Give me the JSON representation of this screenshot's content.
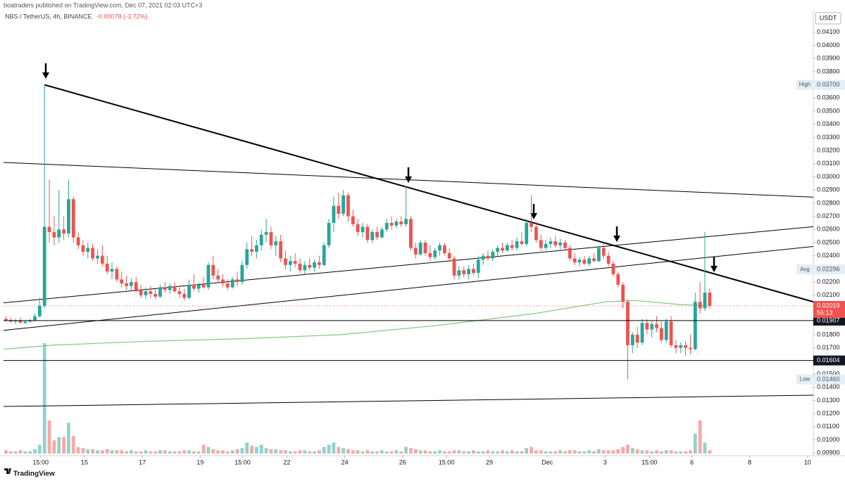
{
  "footer": "TradingView",
  "chart_data": {
    "type": "candlestick",
    "publisher": "boatraders published on TradingView.com, Dec 07, 2021 02:03 UTC+3",
    "title": "NBS / TetherUS, 4h, BINANCE",
    "change": "-0.00078 (-3.72%)",
    "currency": "USDT",
    "up_color": "#26a69a",
    "down_color": "#ef5350",
    "xlim": [
      0,
      168
    ],
    "ylim": [
      0.0088,
      0.0427
    ],
    "xticks": [
      {
        "value": 7.7,
        "label": "15:00"
      },
      {
        "value": 16.8,
        "label": "15"
      },
      {
        "value": 28.8,
        "label": "17"
      },
      {
        "value": 40.8,
        "label": "19"
      },
      {
        "value": 49.6,
        "label": "15:00"
      },
      {
        "value": 58.8,
        "label": "22"
      },
      {
        "value": 70.8,
        "label": "24"
      },
      {
        "value": 82.8,
        "label": "26"
      },
      {
        "value": 91.9,
        "label": "15:00"
      },
      {
        "value": 100.8,
        "label": "29"
      },
      {
        "value": 112.8,
        "label": "Dec"
      },
      {
        "value": 124.8,
        "label": "3"
      },
      {
        "value": 134,
        "label": "15:00"
      },
      {
        "value": 142.8,
        "label": "6"
      },
      {
        "value": 154.8,
        "label": "8"
      },
      {
        "value": 166.8,
        "label": "10"
      }
    ],
    "yticks": [
      {
        "value": 0.009,
        "label": "0.00900"
      },
      {
        "value": 0.01,
        "label": "0.01000"
      },
      {
        "value": 0.011,
        "label": "0.01100"
      },
      {
        "value": 0.012,
        "label": "0.01200"
      },
      {
        "value": 0.013,
        "label": "0.01300"
      },
      {
        "value": 0.014,
        "label": "0.01400"
      },
      {
        "value": 0.015,
        "label": "0.01500"
      },
      {
        "value": 0.016,
        "label": "0.01600"
      },
      {
        "value": 0.017,
        "label": "0.01700"
      },
      {
        "value": 0.018,
        "label": "0.01800"
      },
      {
        "value": 0.019,
        "label": "0.01900"
      },
      {
        "value": 0.02,
        "label": "0.02000"
      },
      {
        "value": 0.021,
        "label": "0.02100"
      },
      {
        "value": 0.022,
        "label": "0.02200"
      },
      {
        "value": 0.023,
        "label": "0.02300"
      },
      {
        "value": 0.024,
        "label": "0.02400"
      },
      {
        "value": 0.025,
        "label": "0.02500"
      },
      {
        "value": 0.026,
        "label": "0.02600"
      },
      {
        "value": 0.027,
        "label": "0.02700"
      },
      {
        "value": 0.028,
        "label": "0.02800"
      },
      {
        "value": 0.029,
        "label": "0.02900"
      },
      {
        "value": 0.03,
        "label": "0.03000"
      },
      {
        "value": 0.031,
        "label": "0.03100"
      },
      {
        "value": 0.032,
        "label": "0.03200"
      },
      {
        "value": 0.033,
        "label": "0.03300"
      },
      {
        "value": 0.034,
        "label": "0.03400"
      },
      {
        "value": 0.035,
        "label": "0.03500"
      },
      {
        "value": 0.036,
        "label": "0.03600"
      },
      {
        "value": 0.037,
        "label": "0.03700"
      },
      {
        "value": 0.038,
        "label": "0.03800"
      },
      {
        "value": 0.039,
        "label": "0.03900"
      },
      {
        "value": 0.04,
        "label": "0.04000"
      },
      {
        "value": 0.041,
        "label": "0.04100"
      }
    ],
    "ohlc": [
      [
        0.0192,
        0.0194,
        0.019,
        0.0191
      ],
      [
        0.0191,
        0.0193,
        0.0189,
        0.019
      ],
      [
        0.019,
        0.0192,
        0.0188,
        0.0191
      ],
      [
        0.0191,
        0.0193,
        0.0189,
        0.0189
      ],
      [
        0.0189,
        0.0191,
        0.0188,
        0.019
      ],
      [
        0.019,
        0.0192,
        0.0189,
        0.0191
      ],
      [
        0.0191,
        0.0196,
        0.019,
        0.0194
      ],
      [
        0.0194,
        0.0208,
        0.0193,
        0.0202
      ],
      [
        0.0202,
        0.037,
        0.02,
        0.0262
      ],
      [
        0.0262,
        0.0298,
        0.025,
        0.0258
      ],
      [
        0.0258,
        0.027,
        0.0248,
        0.0254
      ],
      [
        0.0254,
        0.029,
        0.025,
        0.026
      ],
      [
        0.026,
        0.027,
        0.0252,
        0.0257
      ],
      [
        0.0257,
        0.0298,
        0.0254,
        0.0283
      ],
      [
        0.0283,
        0.0285,
        0.025,
        0.0254
      ],
      [
        0.0254,
        0.0258,
        0.0245,
        0.0248
      ],
      [
        0.0248,
        0.0252,
        0.024,
        0.0243
      ],
      [
        0.0243,
        0.025,
        0.0238,
        0.0246
      ],
      [
        0.0246,
        0.0249,
        0.0236,
        0.0238
      ],
      [
        0.0238,
        0.0245,
        0.0234,
        0.024
      ],
      [
        0.024,
        0.0248,
        0.0232,
        0.0234
      ],
      [
        0.0234,
        0.024,
        0.0226,
        0.0228
      ],
      [
        0.0228,
        0.0235,
        0.0222,
        0.023
      ],
      [
        0.023,
        0.0232,
        0.022,
        0.0222
      ],
      [
        0.0222,
        0.0228,
        0.0216,
        0.0219
      ],
      [
        0.0219,
        0.0225,
        0.0214,
        0.0217
      ],
      [
        0.0217,
        0.0223,
        0.0213,
        0.022
      ],
      [
        0.022,
        0.0224,
        0.0212,
        0.0214
      ],
      [
        0.0214,
        0.0218,
        0.0208,
        0.021
      ],
      [
        0.021,
        0.0216,
        0.0207,
        0.0213
      ],
      [
        0.0213,
        0.0217,
        0.0208,
        0.0211
      ],
      [
        0.0211,
        0.0215,
        0.0207,
        0.0209
      ],
      [
        0.0209,
        0.0218,
        0.0208,
        0.0216
      ],
      [
        0.0216,
        0.022,
        0.0212,
        0.0214
      ],
      [
        0.0214,
        0.0219,
        0.0211,
        0.0217
      ],
      [
        0.0217,
        0.022,
        0.0212,
        0.0213
      ],
      [
        0.0213,
        0.0216,
        0.0208,
        0.0211
      ],
      [
        0.0211,
        0.0215,
        0.0206,
        0.0208
      ],
      [
        0.0208,
        0.0222,
        0.0207,
        0.0218
      ],
      [
        0.0218,
        0.0226,
        0.0213,
        0.0215
      ],
      [
        0.0215,
        0.022,
        0.0212,
        0.0218
      ],
      [
        0.0218,
        0.0224,
        0.0215,
        0.0216
      ],
      [
        0.0216,
        0.0235,
        0.0214,
        0.0233
      ],
      [
        0.0233,
        0.024,
        0.0222,
        0.0225
      ],
      [
        0.0225,
        0.023,
        0.0219,
        0.0222
      ],
      [
        0.0222,
        0.0226,
        0.0216,
        0.0219
      ],
      [
        0.0219,
        0.0222,
        0.0214,
        0.0216
      ],
      [
        0.0216,
        0.0224,
        0.0215,
        0.0222
      ],
      [
        0.0222,
        0.0228,
        0.0217,
        0.022
      ],
      [
        0.022,
        0.0236,
        0.0218,
        0.0233
      ],
      [
        0.0233,
        0.025,
        0.023,
        0.0245
      ],
      [
        0.0245,
        0.0255,
        0.024,
        0.0243
      ],
      [
        0.0243,
        0.0252,
        0.0238,
        0.0248
      ],
      [
        0.0248,
        0.026,
        0.0244,
        0.0256
      ],
      [
        0.0256,
        0.0268,
        0.025,
        0.0258
      ],
      [
        0.0258,
        0.0262,
        0.0245,
        0.0248
      ],
      [
        0.0248,
        0.0255,
        0.024,
        0.0251
      ],
      [
        0.0251,
        0.0256,
        0.0235,
        0.0238
      ],
      [
        0.0238,
        0.0244,
        0.023,
        0.0233
      ],
      [
        0.0233,
        0.024,
        0.0228,
        0.0236
      ],
      [
        0.0236,
        0.0242,
        0.0231,
        0.0234
      ],
      [
        0.0234,
        0.0238,
        0.0227,
        0.0229
      ],
      [
        0.0229,
        0.0236,
        0.0226,
        0.0233
      ],
      [
        0.0233,
        0.0238,
        0.0229,
        0.0231
      ],
      [
        0.0231,
        0.0237,
        0.0228,
        0.0235
      ],
      [
        0.0235,
        0.024,
        0.023,
        0.0233
      ],
      [
        0.0233,
        0.025,
        0.0232,
        0.0248
      ],
      [
        0.0248,
        0.0268,
        0.0246,
        0.0265
      ],
      [
        0.0265,
        0.0285,
        0.0258,
        0.0278
      ],
      [
        0.0278,
        0.0288,
        0.0268,
        0.0272
      ],
      [
        0.0272,
        0.029,
        0.027,
        0.0286
      ],
      [
        0.0286,
        0.0288,
        0.0266,
        0.027
      ],
      [
        0.027,
        0.0275,
        0.0262,
        0.0264
      ],
      [
        0.0264,
        0.0268,
        0.0255,
        0.0258
      ],
      [
        0.0258,
        0.0265,
        0.0254,
        0.0262
      ],
      [
        0.0262,
        0.0264,
        0.025,
        0.0252
      ],
      [
        0.0252,
        0.026,
        0.025,
        0.0258
      ],
      [
        0.0258,
        0.0262,
        0.0252,
        0.0254
      ],
      [
        0.0254,
        0.0262,
        0.0253,
        0.026
      ],
      [
        0.026,
        0.0268,
        0.0258,
        0.0265
      ],
      [
        0.0265,
        0.027,
        0.026,
        0.0263
      ],
      [
        0.0263,
        0.0268,
        0.0261,
        0.0266
      ],
      [
        0.0266,
        0.027,
        0.0262,
        0.0264
      ],
      [
        0.0264,
        0.0293,
        0.0262,
        0.0268
      ],
      [
        0.0268,
        0.027,
        0.0244,
        0.0246
      ],
      [
        0.0246,
        0.025,
        0.0238,
        0.0241
      ],
      [
        0.0241,
        0.0252,
        0.024,
        0.025
      ],
      [
        0.025,
        0.0252,
        0.024,
        0.0242
      ],
      [
        0.0242,
        0.0248,
        0.0236,
        0.0239
      ],
      [
        0.0239,
        0.0246,
        0.0237,
        0.0244
      ],
      [
        0.0244,
        0.025,
        0.024,
        0.0248
      ],
      [
        0.0248,
        0.025,
        0.024,
        0.0242
      ],
      [
        0.0242,
        0.0246,
        0.0236,
        0.0238
      ],
      [
        0.0238,
        0.024,
        0.0222,
        0.0225
      ],
      [
        0.0225,
        0.0232,
        0.0222,
        0.0229
      ],
      [
        0.0229,
        0.0232,
        0.0224,
        0.0226
      ],
      [
        0.0226,
        0.0233,
        0.0222,
        0.023
      ],
      [
        0.023,
        0.0234,
        0.0225,
        0.0227
      ],
      [
        0.0227,
        0.024,
        0.0223,
        0.0237
      ],
      [
        0.0237,
        0.0242,
        0.0233,
        0.024
      ],
      [
        0.024,
        0.0244,
        0.0236,
        0.0238
      ],
      [
        0.0238,
        0.0245,
        0.0236,
        0.0243
      ],
      [
        0.0243,
        0.0248,
        0.024,
        0.0246
      ],
      [
        0.0246,
        0.025,
        0.0242,
        0.0244
      ],
      [
        0.0244,
        0.025,
        0.0243,
        0.0248
      ],
      [
        0.0248,
        0.0252,
        0.0244,
        0.0246
      ],
      [
        0.0246,
        0.0254,
        0.0244,
        0.0251
      ],
      [
        0.0251,
        0.0258,
        0.0248,
        0.0249
      ],
      [
        0.0249,
        0.0268,
        0.0247,
        0.0265
      ],
      [
        0.0265,
        0.0286,
        0.0258,
        0.0262
      ],
      [
        0.0262,
        0.0266,
        0.025,
        0.0252
      ],
      [
        0.0252,
        0.0256,
        0.0244,
        0.0246
      ],
      [
        0.0246,
        0.0252,
        0.0244,
        0.0249
      ],
      [
        0.0249,
        0.0254,
        0.0246,
        0.0251
      ],
      [
        0.0251,
        0.0255,
        0.0246,
        0.0248
      ],
      [
        0.0248,
        0.0253,
        0.0245,
        0.025
      ],
      [
        0.025,
        0.0252,
        0.0244,
        0.0246
      ],
      [
        0.0246,
        0.0248,
        0.0236,
        0.0238
      ],
      [
        0.0238,
        0.0242,
        0.0233,
        0.0235
      ],
      [
        0.0235,
        0.0239,
        0.0232,
        0.0237
      ],
      [
        0.0237,
        0.024,
        0.0233,
        0.0234
      ],
      [
        0.0234,
        0.024,
        0.0232,
        0.0238
      ],
      [
        0.0238,
        0.0242,
        0.0235,
        0.0236
      ],
      [
        0.0236,
        0.0248,
        0.0235,
        0.0246
      ],
      [
        0.0246,
        0.025,
        0.0238,
        0.024
      ],
      [
        0.024,
        0.0243,
        0.0232,
        0.0234
      ],
      [
        0.0234,
        0.0236,
        0.0224,
        0.0226
      ],
      [
        0.0226,
        0.0228,
        0.0216,
        0.0218
      ],
      [
        0.0218,
        0.022,
        0.02,
        0.0205
      ],
      [
        0.0205,
        0.0207,
        0.0146,
        0.0172
      ],
      [
        0.0172,
        0.0182,
        0.0166,
        0.018
      ],
      [
        0.018,
        0.0186,
        0.017,
        0.0174
      ],
      [
        0.0174,
        0.0192,
        0.0172,
        0.0189
      ],
      [
        0.0189,
        0.0192,
        0.018,
        0.0184
      ],
      [
        0.0184,
        0.019,
        0.0178,
        0.0188
      ],
      [
        0.0188,
        0.0194,
        0.0182,
        0.0185
      ],
      [
        0.0185,
        0.019,
        0.0174,
        0.0176
      ],
      [
        0.0176,
        0.0192,
        0.0174,
        0.019
      ],
      [
        0.019,
        0.0194,
        0.017,
        0.0172
      ],
      [
        0.0172,
        0.0176,
        0.0166,
        0.017
      ],
      [
        0.017,
        0.0174,
        0.0166,
        0.0172
      ],
      [
        0.0172,
        0.0175,
        0.0164,
        0.017
      ],
      [
        0.017,
        0.018,
        0.0165,
        0.0169
      ],
      [
        0.0169,
        0.0212,
        0.0168,
        0.0205
      ],
      [
        0.0205,
        0.022,
        0.0196,
        0.02
      ],
      [
        0.02,
        0.0258,
        0.0198,
        0.0212
      ],
      [
        0.0212,
        0.0215,
        0.02,
        0.0202
      ]
    ],
    "volume": [
      3,
      2,
      2,
      3,
      2,
      2,
      4,
      8,
      100,
      30,
      12,
      15,
      15,
      28,
      16,
      6,
      5,
      4,
      4,
      3,
      3,
      4,
      3,
      3,
      3,
      2,
      3,
      2,
      2,
      3,
      2,
      2,
      3,
      3,
      2,
      2,
      2,
      3,
      3,
      2,
      2,
      8,
      6,
      4,
      3,
      3,
      2,
      3,
      4,
      5,
      10,
      7,
      6,
      8,
      5,
      4,
      4,
      3,
      3,
      2,
      2,
      3,
      3,
      2,
      2,
      3,
      6,
      8,
      10,
      6,
      5,
      4,
      3,
      3,
      2,
      3,
      2,
      2,
      3,
      2,
      2,
      3,
      2,
      6,
      5,
      4,
      3,
      3,
      2,
      2,
      3,
      2,
      2,
      3,
      3,
      2,
      2,
      3,
      2,
      2,
      3,
      2,
      2,
      3,
      2,
      3,
      2,
      2,
      5,
      6,
      3,
      3,
      2,
      2,
      2,
      3,
      2,
      3,
      3,
      2,
      2,
      3,
      2,
      4,
      3,
      3,
      3,
      4,
      6,
      8,
      5,
      4,
      3,
      3,
      2,
      3,
      2,
      3,
      3,
      2,
      2,
      2,
      3,
      18,
      30,
      10,
      3
    ],
    "ma": {
      "color": "#81c784",
      "x": [
        0,
        10,
        30,
        50,
        70,
        90,
        110,
        125,
        131,
        140,
        146
      ],
      "values": [
        0.0169,
        0.0172,
        0.0175,
        0.0177,
        0.018,
        0.0187,
        0.0196,
        0.0205,
        0.0206,
        0.0203,
        0.0202
      ]
    },
    "trendlines": [
      {
        "points": [
          [
            8.5,
            0.037
          ],
          [
            168,
            0.0205
          ]
        ],
        "width": 2
      },
      {
        "points": [
          [
            0,
            0.0311
          ],
          [
            168,
            0.02846
          ]
        ],
        "width": 1
      },
      {
        "points": [
          [
            0,
            0.02042
          ],
          [
            168,
            0.02621
          ]
        ],
        "width": 1
      },
      {
        "points": [
          [
            0,
            0.01833
          ],
          [
            168,
            0.02471
          ]
        ],
        "width": 1
      },
      {
        "points": [
          [
            0,
            0.01254
          ],
          [
            168,
            0.0134
          ]
        ],
        "width": 1
      }
    ],
    "levels": [
      {
        "value": 0.01907,
        "label": "0.01907"
      },
      {
        "value": 0.01604,
        "label": "0.01604"
      }
    ],
    "stats": [
      {
        "name": "High",
        "value": 0.037,
        "label": "0.03700"
      },
      {
        "name": "Avg",
        "value": 0.02296,
        "label": "0.02296"
      },
      {
        "name": "Low",
        "value": 0.0146,
        "label": "0.01460"
      }
    ],
    "last": {
      "value": 0.02019,
      "label": "0.02019",
      "countdown": "56:13"
    }
  }
}
